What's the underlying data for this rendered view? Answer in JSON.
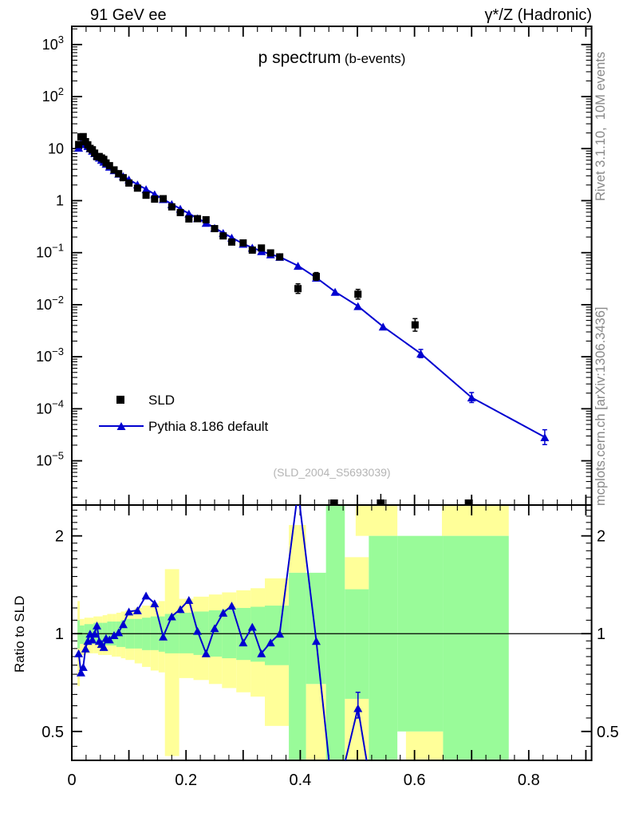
{
  "chart_data": {
    "type": "line",
    "top_left": "91 GeV ee",
    "top_right": "γ*/Z (Hadronic)",
    "title": "p spectrum",
    "title_suffix": "(b-events)",
    "watermark": "(SLD_2004_S5693039)",
    "right_label_top": "Rivet 3.1.10,  10M events",
    "right_label_bottom": "mcplots.cern.ch [arXiv:1306.3436]",
    "ratio_ylabel": "Ratio to SLD",
    "legend": [
      {
        "label": "SLD",
        "marker": "black-square",
        "color": "#000000"
      },
      {
        "label": "Pythia 8.186 default",
        "marker": "blue-triangle-line",
        "color": "#0000d0"
      }
    ],
    "colors": {
      "mc_blue": "#0000d0",
      "data_black": "#000000",
      "band_yellow": "#ffff99",
      "band_green": "#99fb99"
    },
    "xlim": [
      0,
      0.91
    ],
    "x_tick_labels": [
      {
        "v": 0.0,
        "t": "0"
      },
      {
        "v": 0.2,
        "t": "0.2"
      },
      {
        "v": 0.4,
        "t": "0.4"
      },
      {
        "v": 0.6,
        "t": "0.6"
      },
      {
        "v": 0.8,
        "t": "0.8"
      }
    ],
    "main": {
      "yscale": "log",
      "ylog_min": -5.85,
      "ylog_max": 3.35,
      "y_tick_labels": [
        {
          "v": 1000,
          "base": "10",
          "exp": "3"
        },
        {
          "v": 100,
          "base": "10",
          "exp": "2"
        },
        {
          "v": 10,
          "base": "10",
          "exp": ""
        },
        {
          "v": 1,
          "base": "1",
          "exp": ""
        },
        {
          "v": 0.1,
          "base": "10",
          "exp": "-1"
        },
        {
          "v": 0.01,
          "base": "10",
          "exp": "-2"
        },
        {
          "v": 0.001,
          "base": "10",
          "exp": "-3"
        },
        {
          "v": 0.0001,
          "base": "10",
          "exp": "-4"
        },
        {
          "v": 1e-05,
          "base": "10",
          "exp": "-5"
        }
      ],
      "sld_points": [
        [
          0.012,
          12.0
        ],
        [
          0.016,
          16.8
        ],
        [
          0.02,
          17.0
        ],
        [
          0.024,
          13.6
        ],
        [
          0.028,
          11.8
        ],
        [
          0.032,
          10.1
        ],
        [
          0.036,
          9.5
        ],
        [
          0.04,
          8.2
        ],
        [
          0.044,
          7.0
        ],
        [
          0.048,
          7.05
        ],
        [
          0.052,
          6.6
        ],
        [
          0.056,
          6.2
        ],
        [
          0.06,
          5.3
        ],
        [
          0.066,
          4.7
        ],
        [
          0.074,
          3.9
        ],
        [
          0.082,
          3.3
        ],
        [
          0.09,
          2.76
        ],
        [
          0.1,
          2.18
        ],
        [
          0.115,
          1.74
        ],
        [
          0.13,
          1.27
        ],
        [
          0.145,
          1.07
        ],
        [
          0.16,
          1.09
        ],
        [
          0.175,
          0.76
        ],
        [
          0.19,
          0.59
        ],
        [
          0.205,
          0.445
        ],
        [
          0.22,
          0.45
        ],
        [
          0.235,
          0.43
        ],
        [
          0.25,
          0.29
        ],
        [
          0.265,
          0.21
        ],
        [
          0.28,
          0.16
        ],
        [
          0.3,
          0.154
        ],
        [
          0.316,
          0.112
        ],
        [
          0.332,
          0.123
        ],
        [
          0.348,
          0.099
        ],
        [
          0.364,
          0.083
        ],
        [
          0.396,
          0.0204
        ],
        [
          0.428,
          0.035
        ],
        [
          0.501,
          0.0159
        ],
        [
          0.601,
          0.0041
        ]
      ],
      "sld_err": [
        [
          0.396,
          0.0165,
          0.0252
        ],
        [
          0.428,
          0.0295,
          0.0415
        ],
        [
          0.501,
          0.0128,
          0.0197
        ],
        [
          0.601,
          0.0031,
          0.0054
        ]
      ],
      "sld_clipped_x": [
        0.459,
        0.541,
        0.695
      ],
      "sld_clipped_err_x": [
        0.541
      ],
      "pythia_points": [
        [
          0.012,
          10.4
        ],
        [
          0.016,
          12.6
        ],
        [
          0.02,
          13.0
        ],
        [
          0.024,
          12.2
        ],
        [
          0.028,
          11.2
        ],
        [
          0.032,
          10.1
        ],
        [
          0.036,
          9.1
        ],
        [
          0.04,
          8.2
        ],
        [
          0.044,
          7.4
        ],
        [
          0.048,
          6.7
        ],
        [
          0.052,
          6.1
        ],
        [
          0.056,
          5.6
        ],
        [
          0.06,
          5.1
        ],
        [
          0.066,
          4.5
        ],
        [
          0.074,
          3.85
        ],
        [
          0.082,
          3.3
        ],
        [
          0.09,
          2.95
        ],
        [
          0.1,
          2.55
        ],
        [
          0.115,
          2.05
        ],
        [
          0.13,
          1.66
        ],
        [
          0.145,
          1.33
        ],
        [
          0.16,
          1.07
        ],
        [
          0.175,
          0.86
        ],
        [
          0.19,
          0.7
        ],
        [
          0.205,
          0.565
        ],
        [
          0.22,
          0.46
        ],
        [
          0.235,
          0.375
        ],
        [
          0.25,
          0.3
        ],
        [
          0.265,
          0.24
        ],
        [
          0.28,
          0.195
        ],
        [
          0.3,
          0.148
        ],
        [
          0.316,
          0.125
        ],
        [
          0.332,
          0.107
        ],
        [
          0.348,
          0.093
        ],
        [
          0.364,
          0.083
        ],
        [
          0.396,
          0.056
        ],
        [
          0.428,
          0.033
        ],
        [
          0.461,
          0.0177
        ],
        [
          0.501,
          0.0094
        ],
        [
          0.545,
          0.0038
        ],
        [
          0.611,
          0.00115
        ],
        [
          0.7,
          0.000165
        ],
        [
          0.828,
          2.85e-05
        ]
      ],
      "pythia_err": [
        [
          0.611,
          0.00096,
          0.00138
        ],
        [
          0.7,
          0.000132,
          0.000205
        ],
        [
          0.828,
          2.05e-05,
          3.95e-05
        ]
      ]
    },
    "ratio": {
      "yscale": "log",
      "ylog_min": -0.39,
      "ylog_max": 0.396,
      "y_tick_labels": [
        {
          "v": 0.5,
          "t": "0.5"
        },
        {
          "v": 1,
          "t": "1"
        },
        {
          "v": 2,
          "t": "2"
        }
      ],
      "baseline": 1,
      "mc_over_data": [
        [
          0.012,
          0.87
        ],
        [
          0.016,
          0.76
        ],
        [
          0.02,
          0.79
        ],
        [
          0.024,
          0.9
        ],
        [
          0.028,
          0.95
        ],
        [
          0.032,
          1.0
        ],
        [
          0.036,
          0.96
        ],
        [
          0.04,
          1.0
        ],
        [
          0.044,
          1.06
        ],
        [
          0.048,
          0.95
        ],
        [
          0.052,
          0.93
        ],
        [
          0.056,
          0.91
        ],
        [
          0.06,
          0.97
        ],
        [
          0.066,
          0.96
        ],
        [
          0.074,
          0.99
        ],
        [
          0.082,
          1.01
        ],
        [
          0.09,
          1.07
        ],
        [
          0.1,
          1.17
        ],
        [
          0.115,
          1.18
        ],
        [
          0.13,
          1.31
        ],
        [
          0.145,
          1.24
        ],
        [
          0.16,
          0.98
        ],
        [
          0.175,
          1.13
        ],
        [
          0.19,
          1.19
        ],
        [
          0.205,
          1.27
        ],
        [
          0.22,
          1.02
        ],
        [
          0.235,
          0.87
        ],
        [
          0.25,
          1.04
        ],
        [
          0.265,
          1.16
        ],
        [
          0.28,
          1.22
        ],
        [
          0.3,
          0.94
        ],
        [
          0.316,
          1.05
        ],
        [
          0.332,
          0.87
        ],
        [
          0.348,
          0.94
        ],
        [
          0.364,
          1.0
        ],
        [
          0.396,
          2.75
        ],
        [
          0.428,
          0.95
        ],
        [
          0.459,
          -1
        ],
        [
          0.501,
          0.59
        ],
        [
          0.53,
          -1
        ]
      ],
      "ratio_err": [
        [
          0.501,
          0.55,
          0.66
        ]
      ],
      "yellow_bands": [
        [
          0.01,
          0.014,
          0.69,
          1.26
        ],
        [
          0.014,
          0.022,
          0.86,
          1.11
        ],
        [
          0.022,
          0.03,
          0.87,
          1.12
        ],
        [
          0.03,
          0.038,
          0.87,
          1.12
        ],
        [
          0.038,
          0.046,
          0.87,
          1.13
        ],
        [
          0.046,
          0.054,
          0.86,
          1.13
        ],
        [
          0.054,
          0.062,
          0.86,
          1.14
        ],
        [
          0.062,
          0.07,
          0.86,
          1.15
        ],
        [
          0.07,
          0.078,
          0.85,
          1.15
        ],
        [
          0.078,
          0.086,
          0.85,
          1.16
        ],
        [
          0.086,
          0.094,
          0.84,
          1.17
        ],
        [
          0.094,
          0.11,
          0.83,
          1.18
        ],
        [
          0.11,
          0.123,
          0.81,
          1.2
        ],
        [
          0.123,
          0.138,
          0.79,
          1.22
        ],
        [
          0.138,
          0.152,
          0.77,
          1.24
        ],
        [
          0.152,
          0.163,
          0.76,
          1.26
        ],
        [
          0.163,
          0.188,
          0.42,
          1.58
        ],
        [
          0.188,
          0.213,
          0.73,
          1.28
        ],
        [
          0.213,
          0.24,
          0.72,
          1.3
        ],
        [
          0.24,
          0.263,
          0.7,
          1.32
        ],
        [
          0.263,
          0.288,
          0.68,
          1.34
        ],
        [
          0.288,
          0.313,
          0.66,
          1.36
        ],
        [
          0.313,
          0.338,
          0.64,
          1.38
        ],
        [
          0.338,
          0.38,
          0.52,
          1.48
        ],
        [
          0.38,
          0.41,
          1.54,
          2.16
        ],
        [
          0.41,
          0.445,
          0.41,
          0.7
        ],
        [
          0.478,
          0.52,
          1.37,
          1.72
        ],
        [
          0.478,
          0.52,
          0.41,
          0.63
        ],
        [
          0.497,
          0.57,
          2.0,
          2.49
        ],
        [
          0.585,
          0.65,
          0.41,
          0.5
        ],
        [
          0.648,
          0.765,
          2.0,
          2.49
        ]
      ],
      "green_bands": [
        [
          0.01,
          0.014,
          0.9,
          1.1
        ],
        [
          0.014,
          0.022,
          0.93,
          1.06
        ],
        [
          0.022,
          0.03,
          0.93,
          1.07
        ],
        [
          0.03,
          0.038,
          0.93,
          1.07
        ],
        [
          0.038,
          0.046,
          0.93,
          1.08
        ],
        [
          0.046,
          0.054,
          0.92,
          1.08
        ],
        [
          0.054,
          0.062,
          0.92,
          1.08
        ],
        [
          0.062,
          0.07,
          0.92,
          1.09
        ],
        [
          0.07,
          0.078,
          0.92,
          1.09
        ],
        [
          0.078,
          0.086,
          0.91,
          1.09
        ],
        [
          0.086,
          0.094,
          0.91,
          1.1
        ],
        [
          0.094,
          0.11,
          0.9,
          1.11
        ],
        [
          0.11,
          0.123,
          0.9,
          1.11
        ],
        [
          0.123,
          0.138,
          0.89,
          1.12
        ],
        [
          0.138,
          0.152,
          0.89,
          1.13
        ],
        [
          0.152,
          0.163,
          0.88,
          1.13
        ],
        [
          0.163,
          0.188,
          0.87,
          1.15
        ],
        [
          0.188,
          0.213,
          0.87,
          1.16
        ],
        [
          0.213,
          0.24,
          0.86,
          1.17
        ],
        [
          0.24,
          0.263,
          0.85,
          1.18
        ],
        [
          0.263,
          0.288,
          0.84,
          1.19
        ],
        [
          0.288,
          0.313,
          0.83,
          1.2
        ],
        [
          0.313,
          0.338,
          0.82,
          1.21
        ],
        [
          0.338,
          0.38,
          0.8,
          1.22
        ],
        [
          0.38,
          0.41,
          0.41,
          1.54
        ],
        [
          0.41,
          0.445,
          0.7,
          1.54
        ],
        [
          0.445,
          0.478,
          0.41,
          2.49
        ],
        [
          0.478,
          0.52,
          0.63,
          1.37
        ],
        [
          0.52,
          0.57,
          0.41,
          2.0
        ],
        [
          0.57,
          0.65,
          0.5,
          2.0
        ],
        [
          0.65,
          0.765,
          0.41,
          2.0
        ]
      ]
    }
  }
}
